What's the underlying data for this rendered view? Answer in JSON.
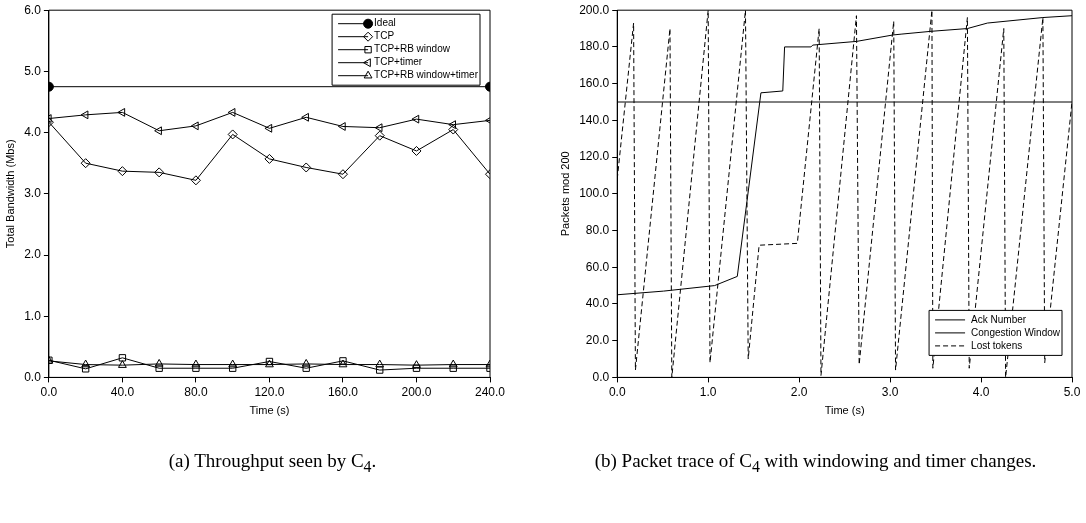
{
  "chart_data": [
    {
      "type": "line",
      "xlabel": "Time (s)",
      "ylabel": "Total Bandwidth (Mbs)",
      "x": [
        0,
        20,
        40,
        60,
        80,
        100,
        120,
        140,
        160,
        180,
        200,
        220,
        240
      ],
      "xlim": [
        0,
        240
      ],
      "xticks": [
        {
          "value": 0,
          "label": "0.0"
        },
        {
          "value": 40,
          "label": "40.0"
        },
        {
          "value": 80,
          "label": "80.0"
        },
        {
          "value": 120,
          "label": "120.0"
        },
        {
          "value": 160,
          "label": "160.0"
        },
        {
          "value": 200,
          "label": "200.0"
        },
        {
          "value": 240,
          "label": "240.0"
        }
      ],
      "ylim": [
        0,
        6
      ],
      "yticks": [
        {
          "value": 0,
          "label": "0.0"
        },
        {
          "value": 1,
          "label": "1.0"
        },
        {
          "value": 2,
          "label": "2.0"
        },
        {
          "value": 3,
          "label": "3.0"
        },
        {
          "value": 4,
          "label": "4.0"
        },
        {
          "value": 5,
          "label": "5.0"
        },
        {
          "value": 6,
          "label": "6.0"
        }
      ],
      "grid": false,
      "legend": "top right",
      "line_style": "solid",
      "series": [
        {
          "name": "Ideal",
          "color": "#000000",
          "marker": "circle",
          "x": [
            0,
            240
          ],
          "values": [
            4.75,
            4.75
          ]
        },
        {
          "name": "TCP",
          "color": "#000000",
          "marker": "diamond",
          "values": [
            4.17,
            3.5,
            3.37,
            3.35,
            3.22,
            3.97,
            3.57,
            3.43,
            3.32,
            3.95,
            3.7,
            4.05,
            3.32
          ]
        },
        {
          "name": "TCP+RB window",
          "color": "#000000",
          "marker": "square",
          "values": [
            0.28,
            0.14,
            0.32,
            0.15,
            0.15,
            0.15,
            0.26,
            0.15,
            0.27,
            0.12,
            0.15,
            0.15,
            0.15
          ]
        },
        {
          "name": "TCP+timer",
          "color": "#000000",
          "marker": "triangle-left",
          "values": [
            4.23,
            4.29,
            4.33,
            4.03,
            4.11,
            4.33,
            4.07,
            4.25,
            4.1,
            4.08,
            4.22,
            4.13,
            4.2
          ]
        },
        {
          "name": "TCP+RB window+timer",
          "color": "#000000",
          "marker": "triangle",
          "values": [
            0.27,
            0.21,
            0.2,
            0.22,
            0.21,
            0.21,
            0.21,
            0.22,
            0.21,
            0.21,
            0.2,
            0.21,
            0.21
          ]
        }
      ],
      "annotations": [
        "(a) Throughput seen by C$_{4}$."
      ]
    },
    {
      "type": "line",
      "xlabel": "Time (s)",
      "ylabel": "Packets mod 200",
      "xlim": [
        0,
        5
      ],
      "xticks": [
        {
          "value": 0,
          "label": "0.0"
        },
        {
          "value": 1,
          "label": "1.0"
        },
        {
          "value": 2,
          "label": "2.0"
        },
        {
          "value": 3,
          "label": "3.0"
        },
        {
          "value": 4,
          "label": "4.0"
        },
        {
          "value": 5,
          "label": "5.0"
        }
      ],
      "ylim": [
        0,
        200
      ],
      "yticks": [
        {
          "value": 0,
          "label": "0.0"
        },
        {
          "value": 20,
          "label": "20.0"
        },
        {
          "value": 40,
          "label": "40.0"
        },
        {
          "value": 60,
          "label": "60.0"
        },
        {
          "value": 80,
          "label": "80.0"
        },
        {
          "value": 100,
          "label": "100.0"
        },
        {
          "value": 120,
          "label": "120.0"
        },
        {
          "value": 140,
          "label": "140.0"
        },
        {
          "value": 160,
          "label": "160.0"
        },
        {
          "value": 180,
          "label": "180.0"
        },
        {
          "value": 200,
          "label": "200.0"
        }
      ],
      "grid": false,
      "legend": "bottom right",
      "marker": "none",
      "series": [
        {
          "name": "Ack Number",
          "color": "#000000",
          "line_style": "solid",
          "x": [
            0,
            0.51,
            1.07,
            1.32,
            1.58,
            1.82,
            1.84,
            2.13,
            2.15,
            2.63,
            3.03,
            3.13,
            3.45,
            3.85,
            4.07,
            4.68,
            5.0
          ],
          "values": [
            45,
            47,
            50,
            55,
            155,
            156,
            180,
            180,
            181,
            183,
            186.5,
            187,
            188.5,
            190,
            193,
            196,
            197
          ]
        },
        {
          "name": "Congestion Window",
          "color": "#000000",
          "line_style": "solid",
          "x": [
            0,
            5
          ],
          "values": [
            150,
            150
          ]
        },
        {
          "name": "Lost tokens",
          "color": "#000000",
          "line_style": "dashed",
          "x": [
            0,
            0.18,
            0.2,
            0.58,
            0.6,
            1.0,
            1.02,
            1.41,
            1.44,
            1.56,
            1.98,
            2.22,
            2.24,
            2.63,
            2.66,
            3.04,
            3.06,
            3.46,
            3.47,
            3.85,
            3.87,
            4.25,
            4.27,
            4.68,
            4.7,
            5.0
          ],
          "values": [
            108,
            193,
            4,
            190,
            0,
            200,
            8,
            200,
            10,
            72,
            73,
            190,
            1,
            197,
            7,
            194,
            4,
            200,
            5,
            196,
            5,
            190,
            0,
            196,
            8,
            150
          ]
        }
      ],
      "annotations": [
        "(b) Packet trace of C$_{4}$ with windowing and timer changes."
      ]
    }
  ]
}
